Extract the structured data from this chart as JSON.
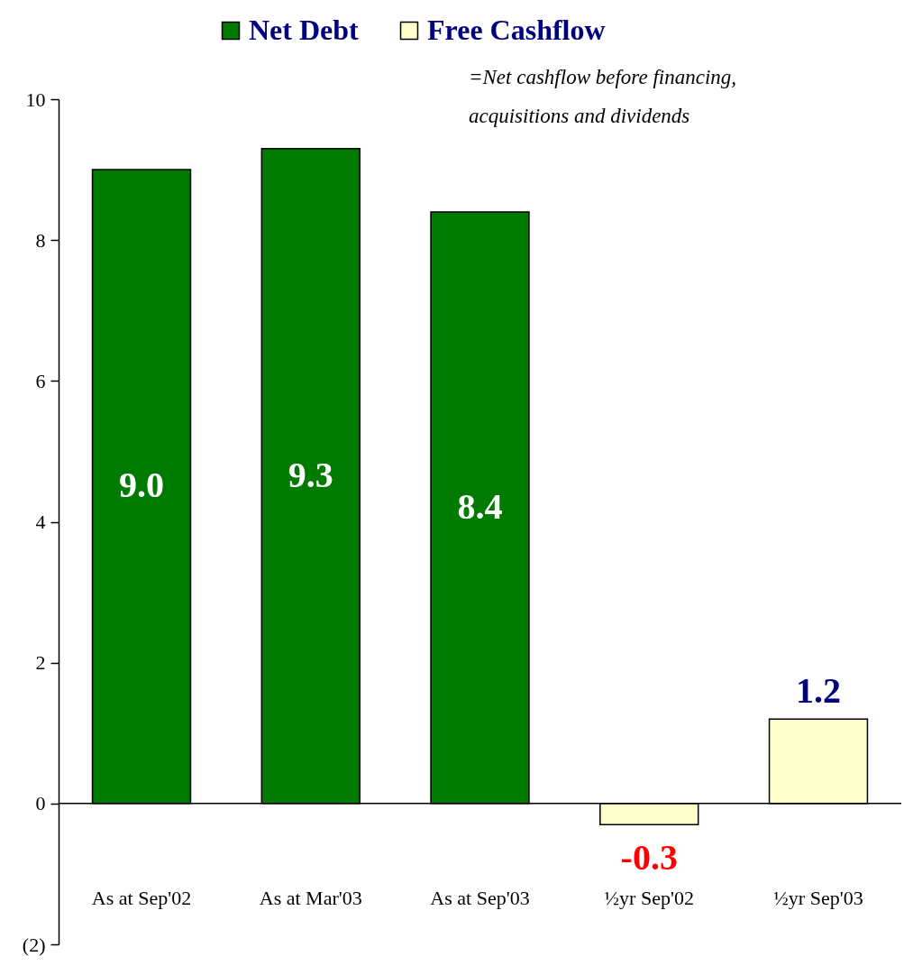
{
  "chart_data": {
    "type": "bar",
    "categories": [
      "As at Sep'02",
      "As at Mar'03",
      "As at Sep'03",
      "½yr Sep'02",
      "½yr Sep'03"
    ],
    "series": [
      {
        "name": "Net Debt",
        "color": "#007a00",
        "values": [
          9.0,
          9.3,
          8.4,
          null,
          null
        ],
        "value_labels": [
          "9.0",
          "9.3",
          "8.4",
          null,
          null
        ]
      },
      {
        "name": "Free Cashflow",
        "color": "#ffffcc",
        "values": [
          null,
          null,
          null,
          -0.3,
          1.2
        ],
        "value_labels": [
          null,
          null,
          null,
          "-0.3",
          "1.2"
        ]
      }
    ],
    "ylim": [
      -2,
      10
    ],
    "yticks": [
      {
        "value": -2,
        "label": "(2)"
      },
      0,
      2,
      4,
      6,
      8,
      10
    ],
    "ref_lines": [
      {
        "axis": "y",
        "value": 0,
        "color": "#000000"
      }
    ],
    "annotations": [
      "=Net cashflow before financing, acquisitions and dividends"
    ],
    "legend": "top",
    "grid": false
  }
}
